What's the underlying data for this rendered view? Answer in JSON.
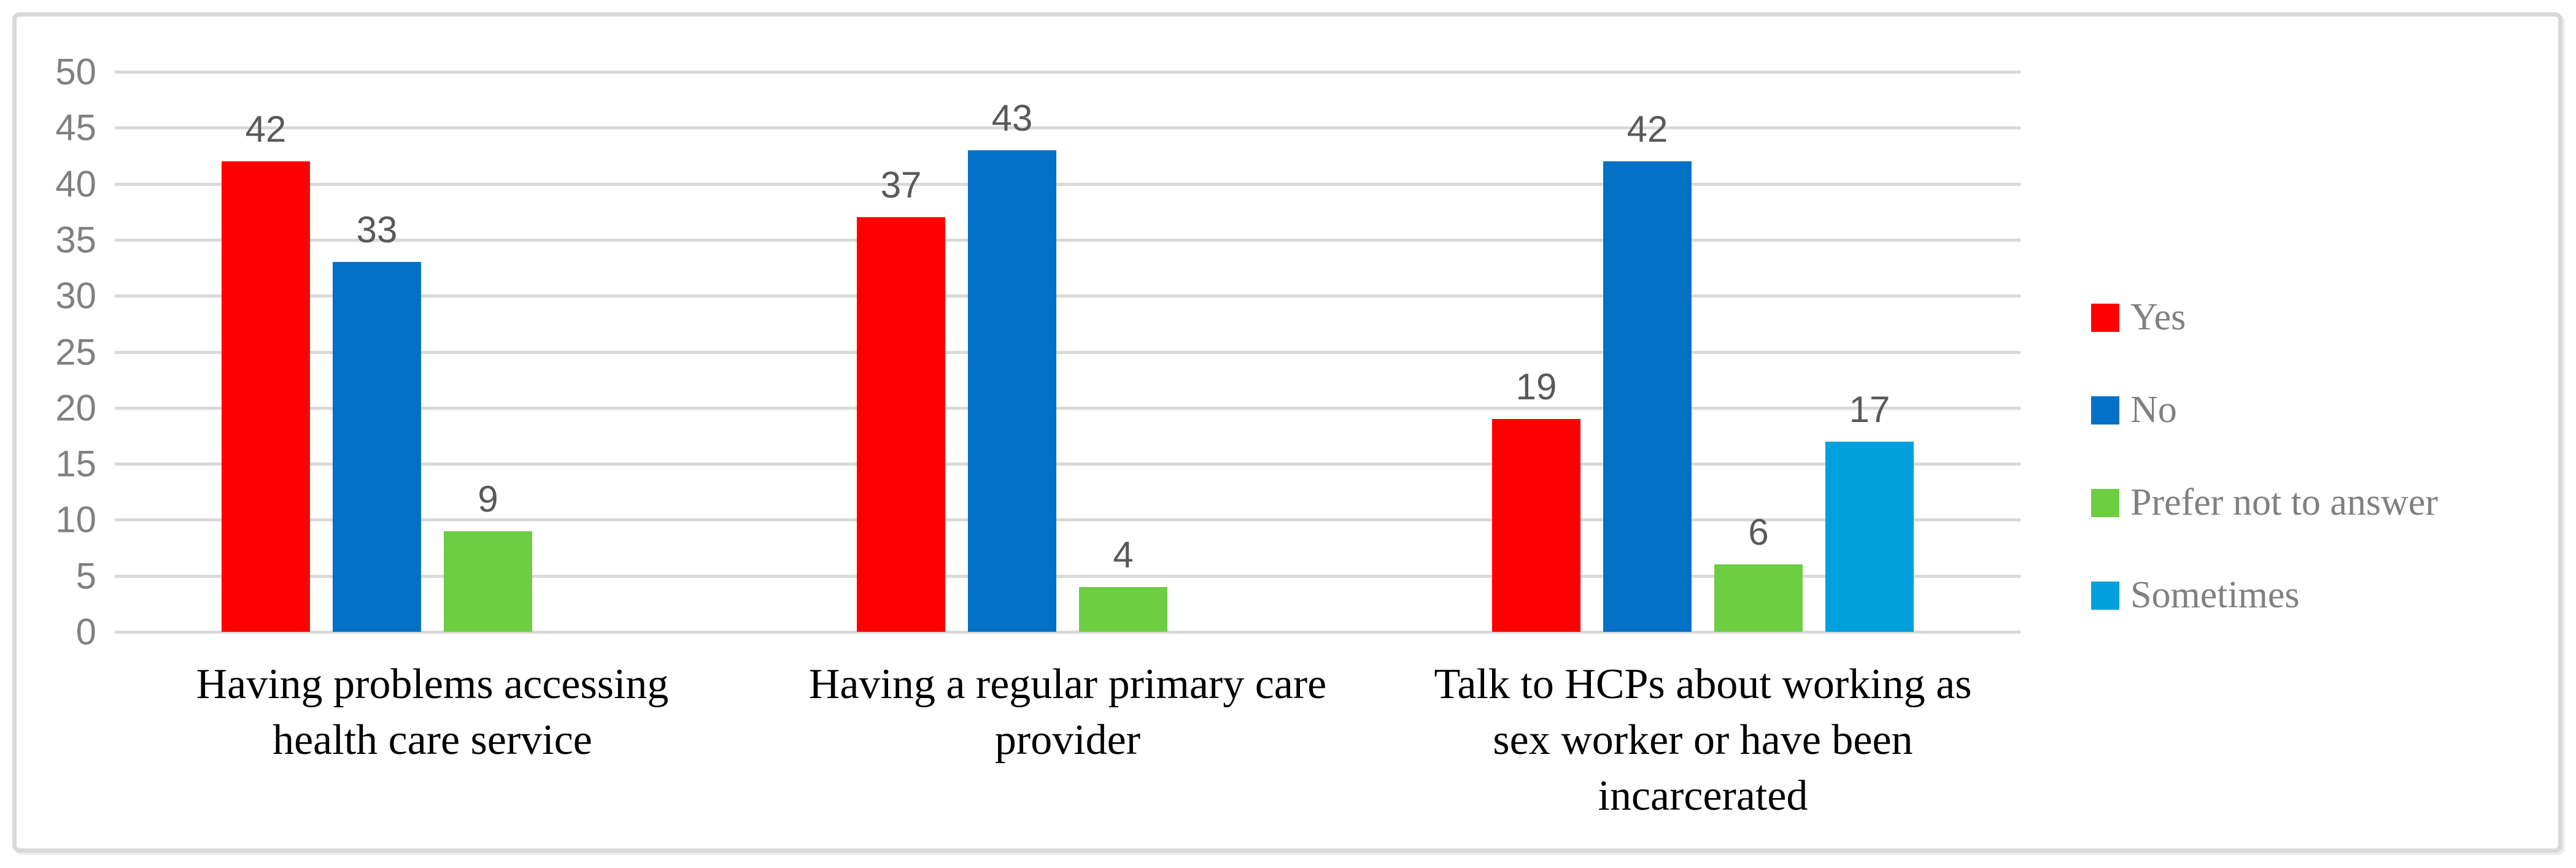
{
  "chart_data": {
    "type": "bar",
    "title": "",
    "xlabel": "",
    "ylabel": "",
    "categories": [
      "Having problems accessing\nhealth care service",
      "Having a  regular primary care\nprovider",
      "Talk to HCPs about working as\nsex worker or have been\nincarcerated"
    ],
    "series": [
      {
        "name": "Yes",
        "color": "#FF0000",
        "values": [
          42,
          37,
          19
        ]
      },
      {
        "name": "No",
        "color": "#0371C6",
        "values": [
          33,
          43,
          42
        ]
      },
      {
        "name": "Prefer not to answer",
        "color": "#6DCE41",
        "values": [
          9,
          4,
          6
        ]
      },
      {
        "name": "Sometimes",
        "color": "#00A0DC",
        "values": [
          null,
          null,
          17
        ]
      }
    ],
    "ylim": [
      0,
      50
    ],
    "y_ticks": [
      0,
      5,
      10,
      15,
      20,
      25,
      30,
      35,
      40,
      45,
      50
    ],
    "grid": true,
    "value_labels": true,
    "legend_position": "right"
  },
  "style_colors": {
    "background": "#ffffff",
    "frame_border": "#d9d9d9",
    "gridline": "#d9d9d9",
    "axis_text": "#808080",
    "value_label_text": "#595959",
    "category_text": "#000000",
    "legend_text": "#808080"
  }
}
